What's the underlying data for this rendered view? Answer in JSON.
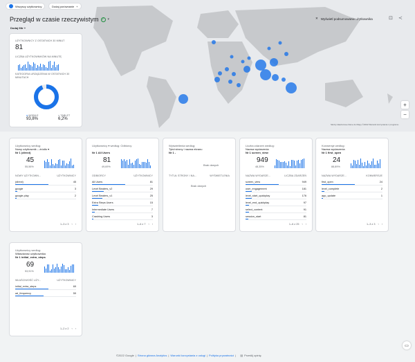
{
  "app": {
    "comparison_chip": "Wszyscy użytkownicy",
    "add_comparison": "Dodaj porównanie",
    "title": "Przegląd w czasie rzeczywistym",
    "filter_label": "Dodaj filtr",
    "snapshot_button": "Wyświetl podsumowanie użytkownika",
    "map_credits": "Skróty klawiszowe   Dane do Mapy ©2022   Warunki korzystania z programu"
  },
  "colors": {
    "accent": "#1a73e8",
    "bubble": "#1a73e8",
    "green": "#1e8e3e"
  },
  "icons": [
    "globe-icon",
    "plus-icon",
    "check-circle-icon",
    "chevron-down-icon",
    "sparkle-icon",
    "edit-icon",
    "share-icon",
    "zoom-in-icon",
    "zoom-out-icon",
    "feedback-icon"
  ],
  "summary": {
    "label": "UŻYTKOWNICY Z OSTATNICH 30 MINUT",
    "value": "81",
    "per_minute_label": "LICZBA UŻYTKOWNIKÓW NA MINUTĘ",
    "device_label": "KATEGORIA URZĄDZENIA W OSTATNICH 30 MINUTACH",
    "device_values": [
      {
        "name": "MOBILE",
        "value": "93,8%"
      },
      {
        "name": "TABLET",
        "value": "6,2%"
      }
    ]
  },
  "cards": [
    {
      "h1": "Użytkownicy według:",
      "h2": "Nowy użytkownik – źródło ▾",
      "h3": "Nr 1  (direct)",
      "big": "45",
      "pct": "55,56%",
      "col1": "NOWY UŻYTKOWN...",
      "col2": "UŻYTKOWNICY",
      "rows": [
        {
          "name": "(direct)",
          "value": "45"
        },
        {
          "name": "google",
          "value": "3"
        },
        {
          "name": "google-play",
          "value": "2"
        }
      ],
      "pager": "1–3 z 3"
    },
    {
      "h1": "Użytkownicy ▾ według: Odbiorcy",
      "h2": "",
      "h3": "Nr 1  All Users",
      "big": "81",
      "pct": "49,69%",
      "col1": "ODBIORCY",
      "col2": "UŻYTKOWNICY",
      "rows": [
        {
          "name": "All Users",
          "value": "81"
        },
        {
          "name": "Level Beaters_v2",
          "value": "29"
        },
        {
          "name": "Level Beaters_v1",
          "value": "25"
        },
        {
          "name": "Extra Steps Users",
          "value": "15"
        },
        {
          "name": "Intermediate Users",
          "value": "7"
        },
        {
          "name": "Crashing Users",
          "value": "3"
        }
      ],
      "pager": "1–6 z 7"
    },
    {
      "h1": "Wyświetlenia według:",
      "h2": "Tytuł strony i nazwa ekranu",
      "h3": "Nr 1  -",
      "big": "",
      "pct": "",
      "nodata1": "Brak danych",
      "col1": "TYTUŁ STRONY I NA...",
      "col2": "WYŚWIETLENIA",
      "nodata2": "Brak danych",
      "rows": [],
      "pager": ""
    },
    {
      "h1": "Liczba zdarzeń według:",
      "h2": "Nazwa wydarzenia",
      "h3": "Nr 1  screen_view",
      "big": "949",
      "pct": "48,35%",
      "col1": "NAZWA WYDARZE...",
      "col2": "LICZBA ZDARZEŃ",
      "rows": [
        {
          "name": "screen_view",
          "value": "949"
        },
        {
          "name": "user_engagement",
          "value": "181"
        },
        {
          "name": "level_start_quickplay",
          "value": "176"
        },
        {
          "name": "level_end_quickplay",
          "value": "97"
        },
        {
          "name": "select_content",
          "value": "91"
        },
        {
          "name": "session_start",
          "value": "81"
        }
      ],
      "pager": "1–6 z 25"
    },
    {
      "h1": "Konwersje według:",
      "h2": "Nazwa wydarzenia",
      "h3": "Nr 1  first_open",
      "big": "24",
      "pct": "88,89%",
      "col1": "NAZWA WYDARZE...",
      "col2": "KONWERSJE",
      "rows": [
        {
          "name": "first_open",
          "value": "24"
        },
        {
          "name": "level_complete",
          "value": "2"
        },
        {
          "name": "app_update",
          "value": "1"
        }
      ],
      "pager": "1–3 z 3"
    },
    {
      "h1": "Użytkownicy według:",
      "h2": "Właściwość użytkownika",
      "h3": "Nr 1  initial_extra_steps",
      "big": "69",
      "pct": "53,91%",
      "col1": "WŁAŚCIWOŚĆ UŻY...",
      "col2": "UŻYTKOWNICY",
      "rows": [
        {
          "name": "initial_extra_steps",
          "value": "69"
        },
        {
          "name": "ad_frequency",
          "value": "59"
        }
      ],
      "pager": "1–2 z 2"
    }
  ],
  "footer": {
    "copyright": "©2022 Google",
    "link1": "Strona główna Analytics",
    "link2": "Warunki korzystania z usługi",
    "link3": "Polityka prywatności",
    "feedback": "Prześlij opinię"
  }
}
